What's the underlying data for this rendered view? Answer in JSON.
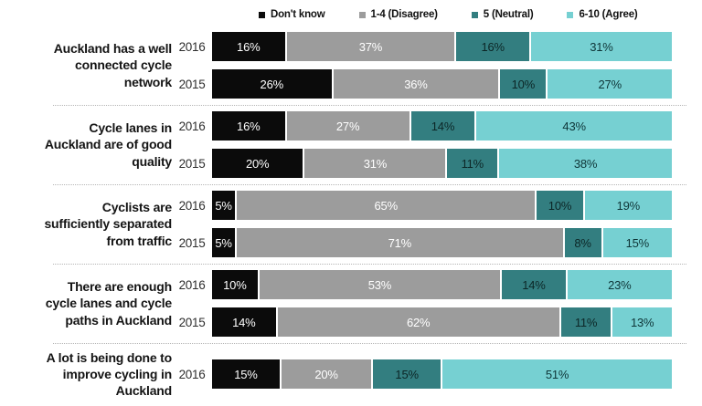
{
  "legend": {
    "items": [
      {
        "label": "Don't know",
        "color": "#0b0b0b"
      },
      {
        "label": "1-4 (Disagree)",
        "color": "#9c9c9c"
      },
      {
        "label": "5 (Neutral)",
        "color": "#337e80"
      },
      {
        "label": "6-10 (Agree)",
        "color": "#76d0d2"
      }
    ]
  },
  "chart_data": {
    "type": "bar",
    "orientation": "horizontal",
    "stacked": true,
    "unit": "%",
    "xlim": [
      0,
      100
    ],
    "grid": false,
    "legend_position": "top",
    "series_names": [
      "Don't know",
      "1-4 (Disagree)",
      "5 (Neutral)",
      "6-10 (Agree)"
    ],
    "value_label_suffix": "%",
    "groups": [
      {
        "category": "Auckland has a well connected cycle network",
        "rows": [
          {
            "year": "2016",
            "values": [
              16,
              37,
              16,
              31
            ]
          },
          {
            "year": "2015",
            "values": [
              26,
              36,
              10,
              27
            ]
          }
        ]
      },
      {
        "category": "Cycle lanes in Auckland are of good quality",
        "rows": [
          {
            "year": "2016",
            "values": [
              16,
              27,
              14,
              43
            ]
          },
          {
            "year": "2015",
            "values": [
              20,
              31,
              11,
              38
            ]
          }
        ]
      },
      {
        "category": "Cyclists are sufficiently separated from traffic",
        "rows": [
          {
            "year": "2016",
            "values": [
              5,
              65,
              10,
              19
            ]
          },
          {
            "year": "2015",
            "values": [
              5,
              71,
              8,
              15
            ]
          }
        ]
      },
      {
        "category": "There are enough cycle lanes and cycle paths in Auckland",
        "rows": [
          {
            "year": "2016",
            "values": [
              10,
              53,
              14,
              23
            ]
          },
          {
            "year": "2015",
            "values": [
              14,
              62,
              11,
              13
            ]
          }
        ]
      },
      {
        "category": "A lot is being done to improve cycling in Auckland",
        "rows": [
          {
            "year": "2016",
            "values": [
              15,
              20,
              15,
              51
            ]
          }
        ]
      }
    ]
  },
  "colors": {
    "background": "#ffffff",
    "segment_fills": [
      "#0b0b0b",
      "#9c9c9c",
      "#337e80",
      "#76d0d2"
    ],
    "segment_label_colors": [
      "#ffffff",
      "#ffffff",
      "#0c2626",
      "#0e3537"
    ],
    "divider": "#b5b5b5",
    "category_text": "#141414",
    "year_text": "#2e2e2e",
    "legend_text": "#111111"
  }
}
